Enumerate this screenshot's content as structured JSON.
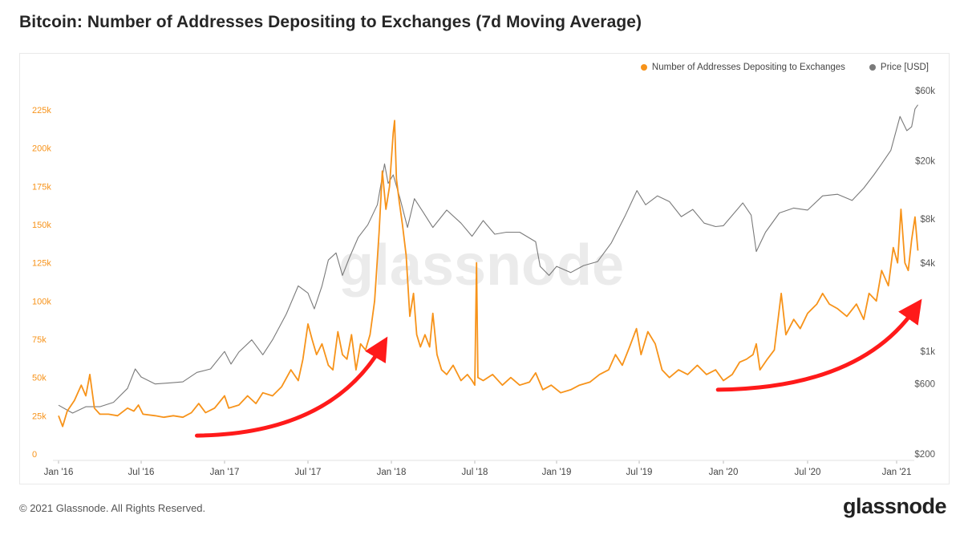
{
  "title": "Bitcoin: Number of Addresses Depositing to Exchanges (7d Moving Average)",
  "footer": {
    "copyright": "© 2021 Glassnode. All Rights Reserved.",
    "brand": "glassnode"
  },
  "watermark": "glassnode",
  "colors": {
    "orange": "#f7931a",
    "gray": "#7a7a7a",
    "arrow": "#ff1a1a",
    "grid": "#f0f0f0"
  },
  "chart_data": {
    "type": "line",
    "legend": {
      "position": "top-right"
    },
    "x_ticks": [
      "Jan '16",
      "Jul '16",
      "Jan '17",
      "Jul '17",
      "Jan '18",
      "Jul '18",
      "Jan '19",
      "Jul '19",
      "Jan '20",
      "Jul '20",
      "Jan '21"
    ],
    "y_left": {
      "ticks": [
        "0",
        "25k",
        "50k",
        "75k",
        "100k",
        "125k",
        "150k",
        "175k",
        "200k",
        "225k"
      ],
      "ylim": [
        0,
        225000
      ]
    },
    "y_right": {
      "scale": "log",
      "ticks": [
        "$200",
        "$600",
        "$1k",
        "$4k",
        "$8k",
        "$20k",
        "$60k"
      ],
      "tick_values": [
        200,
        600,
        1000,
        4000,
        8000,
        20000,
        60000
      ],
      "ylim": [
        200,
        60000
      ]
    },
    "series": [
      {
        "name": "Number of Addresses Depositing to Exchanges",
        "axis": "left",
        "color": "#f7931a",
        "points": [
          [
            "2016-01-01",
            25000
          ],
          [
            "2016-01-10",
            18000
          ],
          [
            "2016-01-20",
            28000
          ],
          [
            "2016-02-05",
            35000
          ],
          [
            "2016-02-20",
            45000
          ],
          [
            "2016-03-01",
            38000
          ],
          [
            "2016-03-10",
            52000
          ],
          [
            "2016-03-20",
            30000
          ],
          [
            "2016-04-01",
            26000
          ],
          [
            "2016-04-20",
            26000
          ],
          [
            "2016-05-10",
            25000
          ],
          [
            "2016-06-01",
            30000
          ],
          [
            "2016-06-15",
            28000
          ],
          [
            "2016-06-25",
            32000
          ],
          [
            "2016-07-05",
            26000
          ],
          [
            "2016-08-01",
            25000
          ],
          [
            "2016-08-20",
            24000
          ],
          [
            "2016-09-10",
            25000
          ],
          [
            "2016-10-01",
            24000
          ],
          [
            "2016-10-20",
            27000
          ],
          [
            "2016-11-05",
            33000
          ],
          [
            "2016-11-20",
            27000
          ],
          [
            "2016-12-10",
            30000
          ],
          [
            "2017-01-01",
            38000
          ],
          [
            "2017-01-10",
            30000
          ],
          [
            "2017-02-01",
            32000
          ],
          [
            "2017-02-20",
            38000
          ],
          [
            "2017-03-10",
            33000
          ],
          [
            "2017-03-25",
            40000
          ],
          [
            "2017-04-15",
            38000
          ],
          [
            "2017-05-05",
            44000
          ],
          [
            "2017-05-25",
            55000
          ],
          [
            "2017-06-10",
            48000
          ],
          [
            "2017-06-20",
            62000
          ],
          [
            "2017-07-01",
            85000
          ],
          [
            "2017-07-10",
            75000
          ],
          [
            "2017-07-20",
            65000
          ],
          [
            "2017-08-01",
            72000
          ],
          [
            "2017-08-15",
            58000
          ],
          [
            "2017-08-25",
            55000
          ],
          [
            "2017-09-05",
            80000
          ],
          [
            "2017-09-15",
            65000
          ],
          [
            "2017-09-25",
            62000
          ],
          [
            "2017-10-05",
            78000
          ],
          [
            "2017-10-15",
            55000
          ],
          [
            "2017-10-25",
            72000
          ],
          [
            "2017-11-05",
            68000
          ],
          [
            "2017-11-15",
            78000
          ],
          [
            "2017-11-25",
            100000
          ],
          [
            "2017-12-05",
            145000
          ],
          [
            "2017-12-12",
            185000
          ],
          [
            "2017-12-20",
            160000
          ],
          [
            "2017-12-28",
            175000
          ],
          [
            "2018-01-05",
            210000
          ],
          [
            "2018-01-08",
            218000
          ],
          [
            "2018-01-12",
            180000
          ],
          [
            "2018-01-18",
            165000
          ],
          [
            "2018-01-25",
            150000
          ],
          [
            "2018-02-02",
            130000
          ],
          [
            "2018-02-10",
            90000
          ],
          [
            "2018-02-18",
            105000
          ],
          [
            "2018-02-25",
            78000
          ],
          [
            "2018-03-05",
            70000
          ],
          [
            "2018-03-15",
            78000
          ],
          [
            "2018-03-25",
            70000
          ],
          [
            "2018-04-01",
            92000
          ],
          [
            "2018-04-10",
            65000
          ],
          [
            "2018-04-20",
            55000
          ],
          [
            "2018-05-01",
            52000
          ],
          [
            "2018-05-15",
            58000
          ],
          [
            "2018-06-01",
            48000
          ],
          [
            "2018-06-15",
            52000
          ],
          [
            "2018-06-25",
            48000
          ],
          [
            "2018-07-01",
            45000
          ],
          [
            "2018-07-05",
            125000
          ],
          [
            "2018-07-08",
            50000
          ],
          [
            "2018-07-20",
            48000
          ],
          [
            "2018-08-10",
            52000
          ],
          [
            "2018-09-01",
            45000
          ],
          [
            "2018-09-20",
            50000
          ],
          [
            "2018-10-10",
            45000
          ],
          [
            "2018-11-01",
            47000
          ],
          [
            "2018-11-15",
            53000
          ],
          [
            "2018-12-01",
            42000
          ],
          [
            "2018-12-20",
            45000
          ],
          [
            "2019-01-10",
            40000
          ],
          [
            "2019-02-01",
            42000
          ],
          [
            "2019-02-20",
            45000
          ],
          [
            "2019-03-15",
            47000
          ],
          [
            "2019-04-05",
            52000
          ],
          [
            "2019-04-25",
            55000
          ],
          [
            "2019-05-10",
            65000
          ],
          [
            "2019-05-25",
            58000
          ],
          [
            "2019-06-10",
            70000
          ],
          [
            "2019-06-25",
            82000
          ],
          [
            "2019-07-05",
            65000
          ],
          [
            "2019-07-20",
            80000
          ],
          [
            "2019-08-05",
            72000
          ],
          [
            "2019-08-20",
            55000
          ],
          [
            "2019-09-05",
            50000
          ],
          [
            "2019-09-25",
            55000
          ],
          [
            "2019-10-15",
            52000
          ],
          [
            "2019-11-05",
            58000
          ],
          [
            "2019-11-25",
            52000
          ],
          [
            "2019-12-15",
            55000
          ],
          [
            "2020-01-01",
            48000
          ],
          [
            "2020-01-20",
            52000
          ],
          [
            "2020-02-05",
            60000
          ],
          [
            "2020-02-20",
            62000
          ],
          [
            "2020-03-05",
            65000
          ],
          [
            "2020-03-12",
            72000
          ],
          [
            "2020-03-20",
            55000
          ],
          [
            "2020-04-05",
            62000
          ],
          [
            "2020-04-20",
            68000
          ],
          [
            "2020-05-05",
            105000
          ],
          [
            "2020-05-15",
            78000
          ],
          [
            "2020-06-01",
            88000
          ],
          [
            "2020-06-15",
            82000
          ],
          [
            "2020-07-01",
            92000
          ],
          [
            "2020-07-20",
            98000
          ],
          [
            "2020-08-01",
            105000
          ],
          [
            "2020-08-15",
            98000
          ],
          [
            "2020-09-01",
            95000
          ],
          [
            "2020-09-20",
            90000
          ],
          [
            "2020-10-10",
            98000
          ],
          [
            "2020-10-25",
            88000
          ],
          [
            "2020-11-05",
            105000
          ],
          [
            "2020-11-20",
            100000
          ],
          [
            "2020-12-01",
            120000
          ],
          [
            "2020-12-15",
            110000
          ],
          [
            "2020-12-25",
            135000
          ],
          [
            "2021-01-03",
            125000
          ],
          [
            "2021-01-10",
            160000
          ],
          [
            "2021-01-18",
            125000
          ],
          [
            "2021-01-25",
            120000
          ],
          [
            "2021-02-01",
            140000
          ],
          [
            "2021-02-08",
            155000
          ],
          [
            "2021-02-14",
            133000
          ]
        ]
      },
      {
        "name": "Price [USD]",
        "axis": "right",
        "color": "#7a7a7a",
        "points": [
          [
            "2016-01-01",
            430
          ],
          [
            "2016-02-01",
            380
          ],
          [
            "2016-03-01",
            420
          ],
          [
            "2016-04-01",
            420
          ],
          [
            "2016-05-01",
            450
          ],
          [
            "2016-06-01",
            560
          ],
          [
            "2016-06-18",
            760
          ],
          [
            "2016-07-01",
            670
          ],
          [
            "2016-08-01",
            600
          ],
          [
            "2016-09-01",
            610
          ],
          [
            "2016-10-01",
            620
          ],
          [
            "2016-11-01",
            720
          ],
          [
            "2016-12-01",
            760
          ],
          [
            "2017-01-01",
            1000
          ],
          [
            "2017-01-15",
            820
          ],
          [
            "2017-02-01",
            990
          ],
          [
            "2017-03-01",
            1200
          ],
          [
            "2017-03-25",
            950
          ],
          [
            "2017-04-15",
            1200
          ],
          [
            "2017-05-15",
            1800
          ],
          [
            "2017-06-10",
            2800
          ],
          [
            "2017-07-01",
            2500
          ],
          [
            "2017-07-15",
            1950
          ],
          [
            "2017-08-01",
            2800
          ],
          [
            "2017-08-15",
            4200
          ],
          [
            "2017-09-01",
            4700
          ],
          [
            "2017-09-15",
            3300
          ],
          [
            "2017-10-01",
            4400
          ],
          [
            "2017-10-20",
            6000
          ],
          [
            "2017-11-10",
            7300
          ],
          [
            "2017-12-01",
            10000
          ],
          [
            "2017-12-17",
            19000
          ],
          [
            "2017-12-25",
            14000
          ],
          [
            "2018-01-05",
            16000
          ],
          [
            "2018-01-20",
            11000
          ],
          [
            "2018-02-05",
            7000
          ],
          [
            "2018-02-20",
            11000
          ],
          [
            "2018-03-10",
            9000
          ],
          [
            "2018-04-01",
            7000
          ],
          [
            "2018-05-01",
            9200
          ],
          [
            "2018-06-01",
            7500
          ],
          [
            "2018-06-25",
            6100
          ],
          [
            "2018-07-20",
            7800
          ],
          [
            "2018-08-15",
            6300
          ],
          [
            "2018-09-10",
            6500
          ],
          [
            "2018-10-10",
            6500
          ],
          [
            "2018-11-15",
            5600
          ],
          [
            "2018-11-25",
            3800
          ],
          [
            "2018-12-15",
            3300
          ],
          [
            "2019-01-01",
            3800
          ],
          [
            "2019-02-01",
            3450
          ],
          [
            "2019-03-01",
            3850
          ],
          [
            "2019-04-01",
            4100
          ],
          [
            "2019-05-01",
            5500
          ],
          [
            "2019-06-01",
            8500
          ],
          [
            "2019-06-26",
            12500
          ],
          [
            "2019-07-15",
            10000
          ],
          [
            "2019-08-10",
            11500
          ],
          [
            "2019-09-05",
            10500
          ],
          [
            "2019-10-01",
            8300
          ],
          [
            "2019-10-26",
            9300
          ],
          [
            "2019-11-20",
            7500
          ],
          [
            "2019-12-15",
            7100
          ],
          [
            "2020-01-01",
            7200
          ],
          [
            "2020-02-12",
            10300
          ],
          [
            "2020-03-01",
            8500
          ],
          [
            "2020-03-12",
            4800
          ],
          [
            "2020-04-01",
            6500
          ],
          [
            "2020-05-01",
            8800
          ],
          [
            "2020-06-01",
            9500
          ],
          [
            "2020-07-01",
            9200
          ],
          [
            "2020-08-01",
            11500
          ],
          [
            "2020-09-01",
            11800
          ],
          [
            "2020-10-01",
            10700
          ],
          [
            "2020-10-25",
            13000
          ],
          [
            "2020-11-15",
            16000
          ],
          [
            "2020-12-01",
            19000
          ],
          [
            "2020-12-20",
            23500
          ],
          [
            "2021-01-08",
            40000
          ],
          [
            "2021-01-22",
            32000
          ],
          [
            "2021-02-01",
            34000
          ],
          [
            "2021-02-08",
            45000
          ],
          [
            "2021-02-14",
            48000
          ]
        ]
      }
    ],
    "annotations": [
      {
        "type": "arrow",
        "from": [
          "2016-11-01",
          12000
        ],
        "to": [
          "2017-12-10",
          70000
        ]
      },
      {
        "type": "arrow",
        "from": [
          "2019-12-20",
          42000
        ],
        "to": [
          "2021-02-08",
          95000
        ]
      }
    ]
  }
}
